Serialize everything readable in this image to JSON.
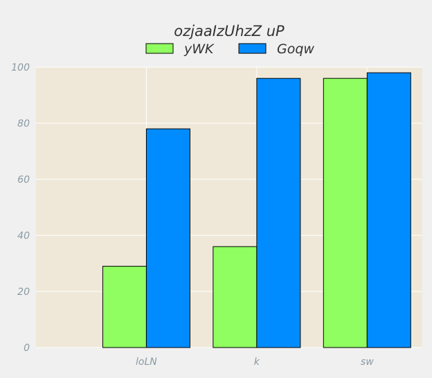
{
  "chart_data": {
    "type": "bar",
    "title": "ozjaaIzUhzZ uP",
    "xlabel": "",
    "ylabel": "",
    "categories": [
      "loLN",
      "k",
      "sw"
    ],
    "series": [
      {
        "name": "yWK",
        "values": [
          29,
          36,
          96
        ],
        "color": "#90fd60"
      },
      {
        "name": "Goqw",
        "values": [
          78,
          96,
          98
        ],
        "color": "#008cfe"
      }
    ],
    "ylim": [
      0,
      100
    ],
    "yticks": [
      "0",
      "20",
      "40",
      "60",
      "80",
      "100"
    ],
    "grid": true,
    "legend_position": "top-center",
    "plot_background": "#efe8d8",
    "figure_background": "#f0f0f0"
  }
}
